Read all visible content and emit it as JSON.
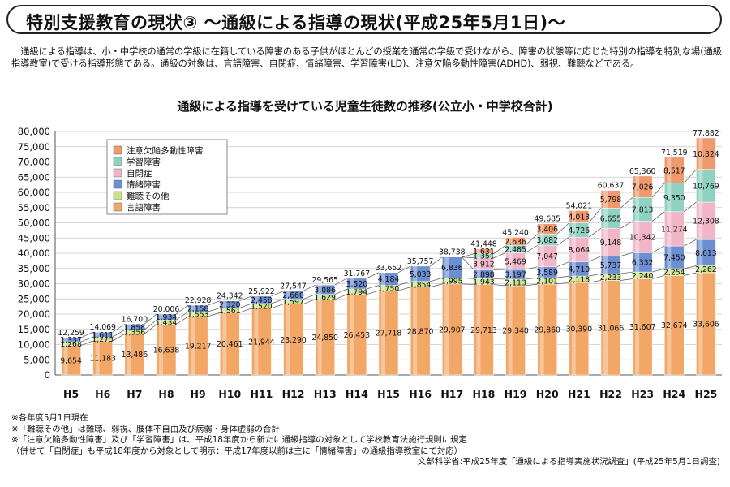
{
  "header": {
    "title": "特別支援教育の現状③ ～通級による指導の現状(平成25年5月1日)～"
  },
  "intro": "通級による指導は、小・中学校の通常の学級に在籍している障害のある子供がほとんどの授業を通常の学級で受けながら、障害の状態等に応じた特別の指導を特別な場(通級指導教室)で受ける指導形態である。通級の対象は、言語障害、自閉症、情緒障害、学習障害(LD)、注意欠陥多動性障害(ADHD)、弱視、難聴などである。",
  "chart_data": {
    "type": "bar",
    "stacked": true,
    "title": "通級による指導を受けている児童生徒数の推移(公立小・中学校合計)",
    "categories": [
      "H5",
      "H6",
      "H7",
      "H8",
      "H9",
      "H10",
      "H11",
      "H12",
      "H13",
      "H14",
      "H15",
      "H16",
      "H17",
      "H18",
      "H19",
      "H20",
      "H21",
      "H22",
      "H23",
      "H24",
      "H25"
    ],
    "ylim": [
      0,
      80000
    ],
    "yticks": [
      "0",
      "5,000",
      "10,000",
      "15,000",
      "20,000",
      "25,000",
      "30,000",
      "35,000",
      "40,000",
      "45,000",
      "50,000",
      "55,000",
      "60,000",
      "65,000",
      "70,000",
      "75,000",
      "80,000"
    ],
    "legend_position": "top-left",
    "series": [
      {
        "name": "言語障害",
        "color": "#f2a766",
        "values": [
          9654,
          11183,
          13486,
          16638,
          19217,
          20461,
          21944,
          23290,
          24850,
          26453,
          27718,
          28870,
          29907,
          29713,
          29340,
          29860,
          30390,
          31066,
          31607,
          32674,
          33606
        ],
        "labels": [
          "9,654",
          "11,183",
          "13,486",
          "16,638",
          "19,217",
          "20,461",
          "21,944",
          "23,290",
          "24,850",
          "26,453",
          "27,718",
          "28,870",
          "29,907",
          "29,713",
          "29,340",
          "29,860",
          "30,390",
          "31,066",
          "31,607",
          "32,674",
          "33,606"
        ]
      },
      {
        "name": "難聴その他",
        "color": "#c9e28a",
        "values": [
          1268,
          1275,
          1356,
          1434,
          1553,
          1561,
          1520,
          1597,
          1629,
          1794,
          1750,
          1854,
          1995,
          1943,
          2113,
          2101,
          2118,
          2233,
          2240,
          2254,
          2262
        ],
        "labels": [
          "1,268",
          "1,275",
          "1,356",
          "1,434",
          "1,553",
          "1,561",
          "1,520",
          "1,597",
          "1,629",
          "1,794",
          "1,750",
          "1,854",
          "1,995",
          "1,943",
          "2,113",
          "2,101",
          "2,118",
          "2,233",
          "2,240",
          "2,254",
          "2,262"
        ]
      },
      {
        "name": "情緒障害",
        "color": "#6d8fd1",
        "values": [
          1337,
          1611,
          1858,
          1934,
          2158,
          2320,
          2458,
          2660,
          3086,
          3520,
          4184,
          5033,
          6836,
          2898,
          3197,
          3589,
          4710,
          5737,
          6332,
          7450,
          8613
        ],
        "labels": [
          "1,337",
          "1,611",
          "1,858",
          "1,934",
          "2,158",
          "2,320",
          "2,458",
          "2,660",
          "3,086",
          "3,520",
          "4,184",
          "5,033",
          "6,836",
          "2,898",
          "3,197",
          "3,589",
          "4,710",
          "5,737",
          "6,332",
          "7,450",
          "8,613"
        ]
      },
      {
        "name": "自閉症",
        "color": "#f0b6c8",
        "values": [
          0,
          0,
          0,
          0,
          0,
          0,
          0,
          0,
          0,
          0,
          0,
          0,
          0,
          3912,
          5469,
          7047,
          8064,
          9148,
          10342,
          11274,
          12308
        ],
        "labels": [
          "",
          "",
          "",
          "",
          "",
          "",
          "",
          "",
          "",
          "",
          "",
          "",
          "",
          "3,912",
          "5,469",
          "7,047",
          "8,064",
          "9,148",
          "10,342",
          "11,274",
          "12,308"
        ]
      },
      {
        "name": "学習障害",
        "color": "#8fd2c2",
        "values": [
          0,
          0,
          0,
          0,
          0,
          0,
          0,
          0,
          0,
          0,
          0,
          0,
          0,
          1351,
          2485,
          3682,
          4726,
          6655,
          7813,
          9350,
          10769
        ],
        "labels": [
          "",
          "",
          "",
          "",
          "",
          "",
          "",
          "",
          "",
          "",
          "",
          "",
          "",
          "1,351",
          "2,485",
          "3,682",
          "4,726",
          "6,655",
          "7,813",
          "9,350",
          "10,769"
        ]
      },
      {
        "name": "注意欠陥多動性障害",
        "color": "#ef9a6e",
        "values": [
          0,
          0,
          0,
          0,
          0,
          0,
          0,
          0,
          0,
          0,
          0,
          0,
          0,
          1631,
          2636,
          3406,
          4013,
          5798,
          7026,
          8517,
          10324
        ],
        "labels": [
          "",
          "",
          "",
          "",
          "",
          "",
          "",
          "",
          "",
          "",
          "",
          "",
          "",
          "1,631",
          "2,636",
          "3,406",
          "4,013",
          "5,798",
          "7,026",
          "8,517",
          "10,324"
        ]
      }
    ],
    "totals": [
      "12,259",
      "14,069",
      "16,700",
      "20,006",
      "22,928",
      "24,342",
      "25,922",
      "27,547",
      "29,565",
      "31,767",
      "33,652",
      "35,757",
      "38,738",
      "41,448",
      "45,240",
      "49,685",
      "54,021",
      "60,637",
      "65,360",
      "71,519",
      "77,882"
    ],
    "legend_order": [
      "注意欠陥多動性障害",
      "学習障害",
      "自閉症",
      "情緒障害",
      "難聴その他",
      "言語障害"
    ]
  },
  "notes": [
    "※各年度5月1日現在",
    "※「難聴その他」は難聴、弱視、肢体不自由及び病弱・身体虚弱の合計",
    "※「注意欠陥多動性障害」及び「学習障害」は、平成18年度から新たに通級指導の対象として学校教育法施行規則に規定",
    "（併せて「自閉症」も平成18年度から対象として明示：平成17年度以前は主に「情緒障害」の通級指導教室にて対応）"
  ],
  "source": "文部科学省:平成25年度「通級による指導実施状況調査」(平成25年5月1日調査)"
}
